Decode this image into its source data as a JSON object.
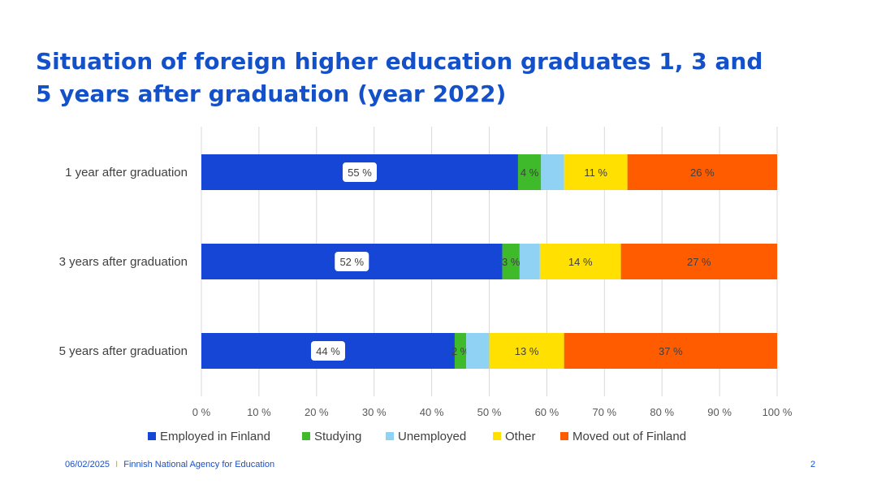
{
  "slide": {
    "title": "Situation of foreign higher education graduates 1, 3 and 5 years after graduation (year 2022)",
    "footer_date": "06/02/2025",
    "footer_separator": "I",
    "footer_org": "Finnish National Agency for Education",
    "page_number": "2"
  },
  "chart_data": {
    "type": "bar",
    "orientation": "horizontal",
    "stacked": "percent",
    "categories": [
      "1 year after graduation",
      "3 years after graduation",
      "5 years after graduation"
    ],
    "series": [
      {
        "name": "Employed in Finland",
        "color": "#1546d6",
        "values": [
          55,
          52,
          44
        ],
        "labels": [
          "55 %",
          "52 %",
          "44 %"
        ]
      },
      {
        "name": "Studying",
        "color": "#3fba2a",
        "values": [
          4,
          3,
          2
        ],
        "labels": [
          "4 %",
          "3 %",
          "2 %"
        ]
      },
      {
        "name": "Unemployed",
        "color": "#8fd2f4",
        "values": [
          4,
          3.5,
          4
        ],
        "labels": [
          "",
          "",
          ""
        ]
      },
      {
        "name": "Other",
        "color": "#ffe000",
        "values": [
          11,
          14,
          13
        ],
        "labels": [
          "11 %",
          "14 %",
          "13 %"
        ]
      },
      {
        "name": "Moved out of Finland",
        "color": "#ff5c00",
        "values": [
          26,
          27,
          37
        ],
        "labels": [
          "26 %",
          "27 %",
          "37 %"
        ]
      }
    ],
    "xlim": [
      0,
      100
    ],
    "x_ticks": [
      "0 %",
      "10 %",
      "20 %",
      "30 %",
      "40 %",
      "50 %",
      "60 %",
      "70 %",
      "80 %",
      "90 %",
      "100 %"
    ],
    "grid": true,
    "legend_position": "bottom"
  }
}
